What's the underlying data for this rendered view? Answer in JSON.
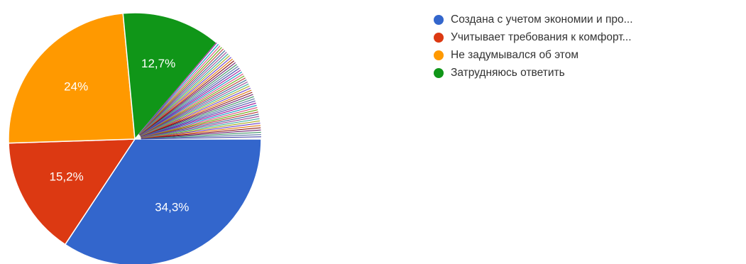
{
  "chart_data": {
    "type": "pie",
    "slices": [
      {
        "label": "Создана с учетом экономии и про...",
        "value": 34.3,
        "display": "34,3%",
        "color": "#3366cc"
      },
      {
        "label": "Учитывает требования к комфорт...",
        "value": 15.2,
        "display": "15,2%",
        "color": "#dc3912"
      },
      {
        "label": "Не задумывался об этом",
        "value": 24,
        "display": "24%",
        "color": "#ff9900"
      },
      {
        "label": "Затрудняюсь ответить",
        "value": 12.7,
        "display": "12,7%",
        "color": "#109618"
      }
    ],
    "remainder": {
      "value": 13.8,
      "style": "many thin unlabeled slices",
      "colors": [
        "#990099",
        "#0099c6",
        "#dd4477",
        "#66aa00",
        "#b82e2e",
        "#316395",
        "#994499",
        "#22aa99",
        "#aaaa11",
        "#6633cc",
        "#e67300",
        "#8b0707",
        "#651067",
        "#329262",
        "#5574a6",
        "#3b3eac"
      ]
    },
    "legend_position": "right"
  }
}
